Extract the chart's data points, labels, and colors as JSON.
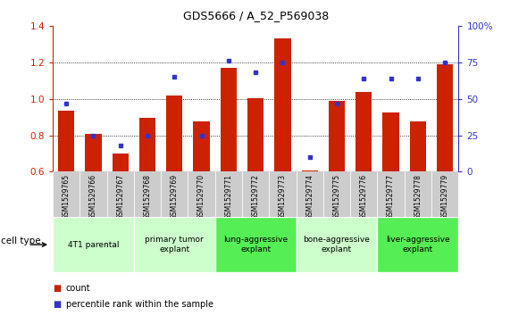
{
  "title": "GDS5666 / A_52_P569038",
  "samples": [
    "GSM1529765",
    "GSM1529766",
    "GSM1529767",
    "GSM1529768",
    "GSM1529769",
    "GSM1529770",
    "GSM1529771",
    "GSM1529772",
    "GSM1529773",
    "GSM1529774",
    "GSM1529775",
    "GSM1529776",
    "GSM1529777",
    "GSM1529778",
    "GSM1529779"
  ],
  "counts": [
    0.935,
    0.81,
    0.7,
    0.895,
    1.02,
    0.875,
    1.17,
    1.005,
    1.33,
    0.605,
    0.99,
    1.04,
    0.925,
    0.875,
    1.19
  ],
  "percentiles": [
    47,
    25,
    18,
    25,
    65,
    25,
    76,
    68,
    75,
    10,
    47,
    64,
    64,
    64,
    75
  ],
  "ylim_left": [
    0.6,
    1.4
  ],
  "ylim_right": [
    0,
    100
  ],
  "yticks_left": [
    0.6,
    0.8,
    1.0,
    1.2,
    1.4
  ],
  "yticks_right": [
    0,
    25,
    50,
    75,
    100
  ],
  "ytick_labels_right": [
    "0",
    "25",
    "50",
    "75",
    "100%"
  ],
  "bar_color": "#cc2200",
  "dot_color": "#3333cc",
  "cell_types": [
    {
      "label": "4T1 parental",
      "start": 0,
      "end": 3,
      "color": "#ccffcc"
    },
    {
      "label": "primary tumor\nexplant",
      "start": 3,
      "end": 6,
      "color": "#ccffcc"
    },
    {
      "label": "lung-aggressive\nexplant",
      "start": 6,
      "end": 9,
      "color": "#55ee55"
    },
    {
      "label": "bone-aggressive\nexplant",
      "start": 9,
      "end": 12,
      "color": "#ccffcc"
    },
    {
      "label": "liver-aggressive\nexplant",
      "start": 12,
      "end": 15,
      "color": "#55ee55"
    }
  ],
  "xlabel_celltype": "cell type",
  "legend_count": "count",
  "legend_percentile": "percentile rank within the sample",
  "tick_bg_color": "#cccccc"
}
